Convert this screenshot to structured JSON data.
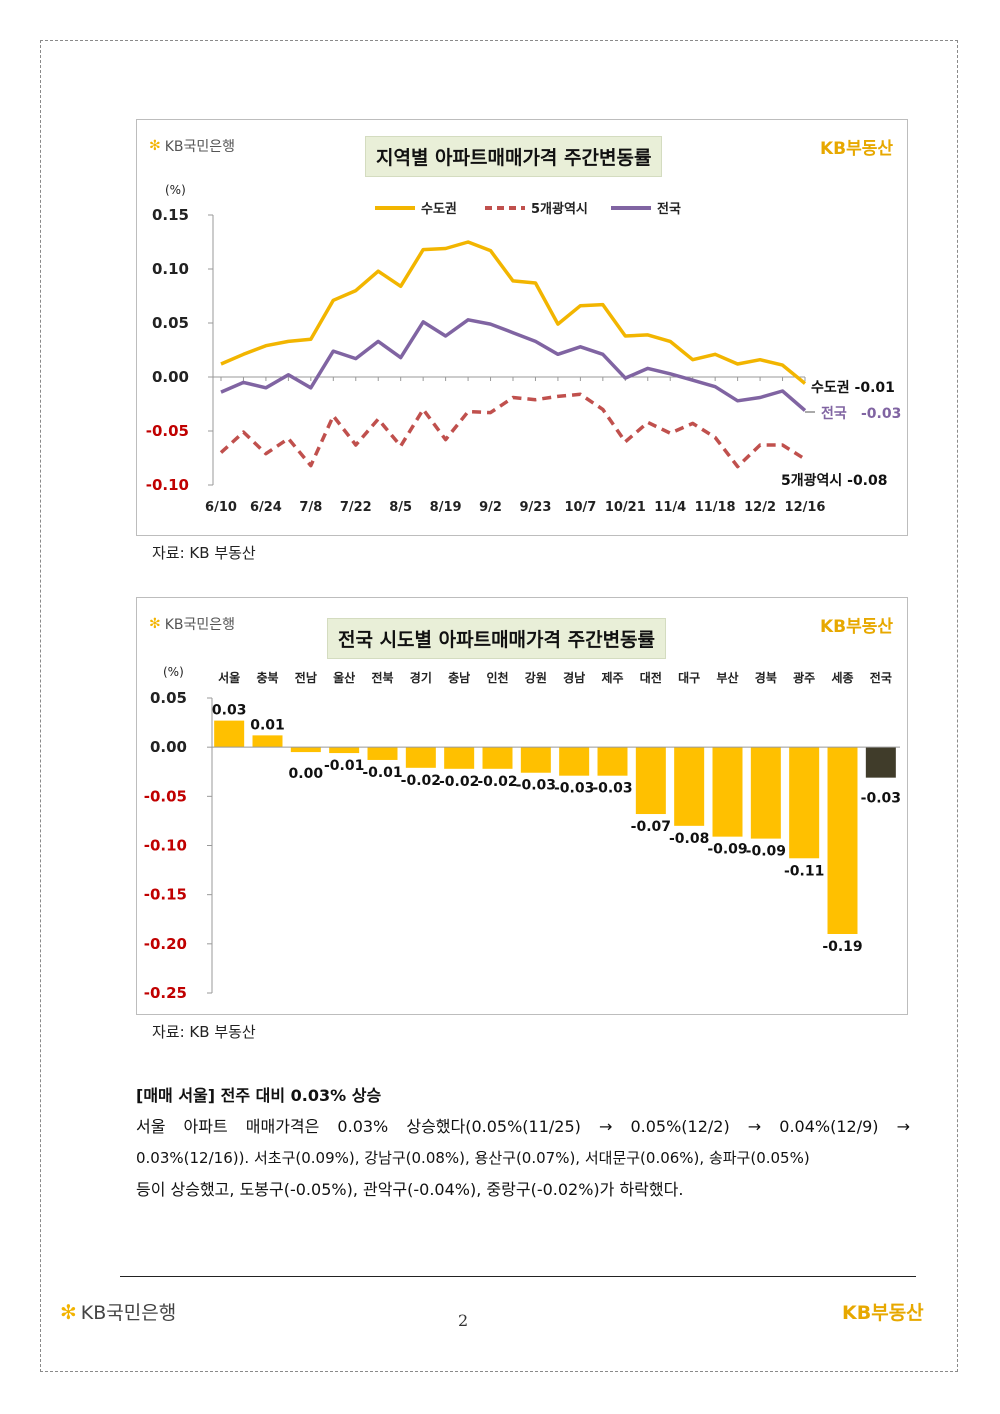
{
  "brand": {
    "bank_logo": "KB국민은행",
    "realestate_logo_kb": "KB",
    "realestate_logo_text": "부동산",
    "star_icon": "kb-star-icon",
    "logo_color": "#f2b300"
  },
  "chart1": {
    "title": "지역별 아파트매매가격 주간변동률",
    "source": "자료: KB 부동산",
    "end_labels": {
      "capital": "수도권  -0.01",
      "national_name": "전국",
      "national_value": "-0.03",
      "metro": "5개광역시  -0.08"
    }
  },
  "chart2": {
    "title": "전국 시도별 아파트매매가격 주간변동률",
    "source": "자료: KB 부동산"
  },
  "chart_data": [
    {
      "type": "line",
      "title": "지역별 아파트매매가격 주간변동률",
      "ylabel": "(%)",
      "ylim": [
        -0.1,
        0.15
      ],
      "yticks": [
        "0.15",
        "0.10",
        "0.05",
        "0.00",
        "-0.05",
        "-0.10"
      ],
      "x_tick_labels": [
        "6/10",
        "6/24",
        "7/8",
        "7/22",
        "8/5",
        "8/19",
        "9/2",
        "9/23",
        "10/7",
        "10/21",
        "11/4",
        "11/18",
        "12/2",
        "12/16"
      ],
      "x_tick_index": [
        0,
        2,
        4,
        6,
        8,
        10,
        12,
        14,
        16,
        18,
        20,
        22,
        24,
        26
      ],
      "legend_position": "top",
      "series": [
        {
          "name": "수도권",
          "color": "#f2b500",
          "dash": false,
          "values": [
            0.012,
            0.021,
            0.029,
            0.033,
            0.035,
            0.071,
            0.08,
            0.098,
            0.084,
            0.118,
            0.119,
            0.125,
            0.117,
            0.089,
            0.087,
            0.049,
            0.066,
            0.067,
            0.038,
            0.039,
            0.033,
            0.016,
            0.021,
            0.012,
            0.016,
            0.011,
            -0.006
          ]
        },
        {
          "name": "5개광역시",
          "color": "#c0504d",
          "dash": true,
          "values": [
            -0.07,
            -0.051,
            -0.071,
            -0.057,
            -0.082,
            -0.036,
            -0.063,
            -0.039,
            -0.064,
            -0.03,
            -0.058,
            -0.032,
            -0.033,
            -0.019,
            -0.021,
            -0.018,
            -0.016,
            -0.03,
            -0.06,
            -0.042,
            -0.052,
            -0.043,
            -0.056,
            -0.083,
            -0.063,
            -0.063,
            -0.076
          ]
        },
        {
          "name": "전국",
          "color": "#8064a2",
          "dash": false,
          "values": [
            -0.014,
            -0.005,
            -0.01,
            0.002,
            -0.01,
            0.024,
            0.017,
            0.033,
            0.018,
            0.051,
            0.038,
            0.053,
            0.049,
            0.041,
            0.033,
            0.021,
            0.028,
            0.021,
            -0.001,
            0.008,
            0.003,
            -0.003,
            -0.009,
            -0.022,
            -0.019,
            -0.013,
            -0.031
          ]
        }
      ]
    },
    {
      "type": "bar",
      "title": "전국 시도별 아파트매매가격 주간변동률",
      "ylabel": "(%)",
      "ylim": [
        -0.25,
        0.05
      ],
      "yticks": [
        "0.05",
        "0.00",
        "-0.05",
        "-0.10",
        "-0.15",
        "-0.20",
        "-0.25"
      ],
      "categories": [
        "서울",
        "충북",
        "전남",
        "울산",
        "전북",
        "경기",
        "충남",
        "인천",
        "강원",
        "경남",
        "제주",
        "대전",
        "대구",
        "부산",
        "경북",
        "광주",
        "세종",
        "전국"
      ],
      "values": [
        0.027,
        0.012,
        -0.005,
        -0.006,
        -0.013,
        -0.021,
        -0.022,
        -0.022,
        -0.026,
        -0.029,
        -0.029,
        -0.068,
        -0.08,
        -0.091,
        -0.093,
        -0.113,
        -0.19,
        -0.031
      ],
      "value_labels": [
        "0.03",
        "0.01",
        "0.00",
        "-0.01",
        "-0.01",
        "-0.02",
        "-0.02",
        "-0.02",
        "-0.03",
        "-0.03",
        "-0.03",
        "-0.07",
        "-0.08",
        "-0.09",
        "-0.09",
        "-0.11",
        "-0.19",
        "-0.03"
      ],
      "colors": {
        "bar": "#ffc000",
        "national": "#403c2a",
        "negative_tick": "#c00000"
      }
    }
  ],
  "article": {
    "heading": "[매매 서울] 전주 대비 0.03% 상승",
    "line1": "서울 아파트 매매가격은 0.03% 상승했다(0.05%(11/25) → 0.05%(12/2) → 0.04%(12/9) →",
    "line2": "0.03%(12/16)). 서초구(0.09%), 강남구(0.08%), 용산구(0.07%), 서대문구(0.06%), 송파구(0.05%)",
    "line3": "등이 상승했고, 도봉구(-0.05%), 관악구(-0.04%), 중랑구(-0.02%)가 하락했다."
  },
  "footer": {
    "page_number": "2",
    "bank_logo": "KB국민은행",
    "realestate_kb": "KB",
    "realestate_text": "부동산"
  }
}
